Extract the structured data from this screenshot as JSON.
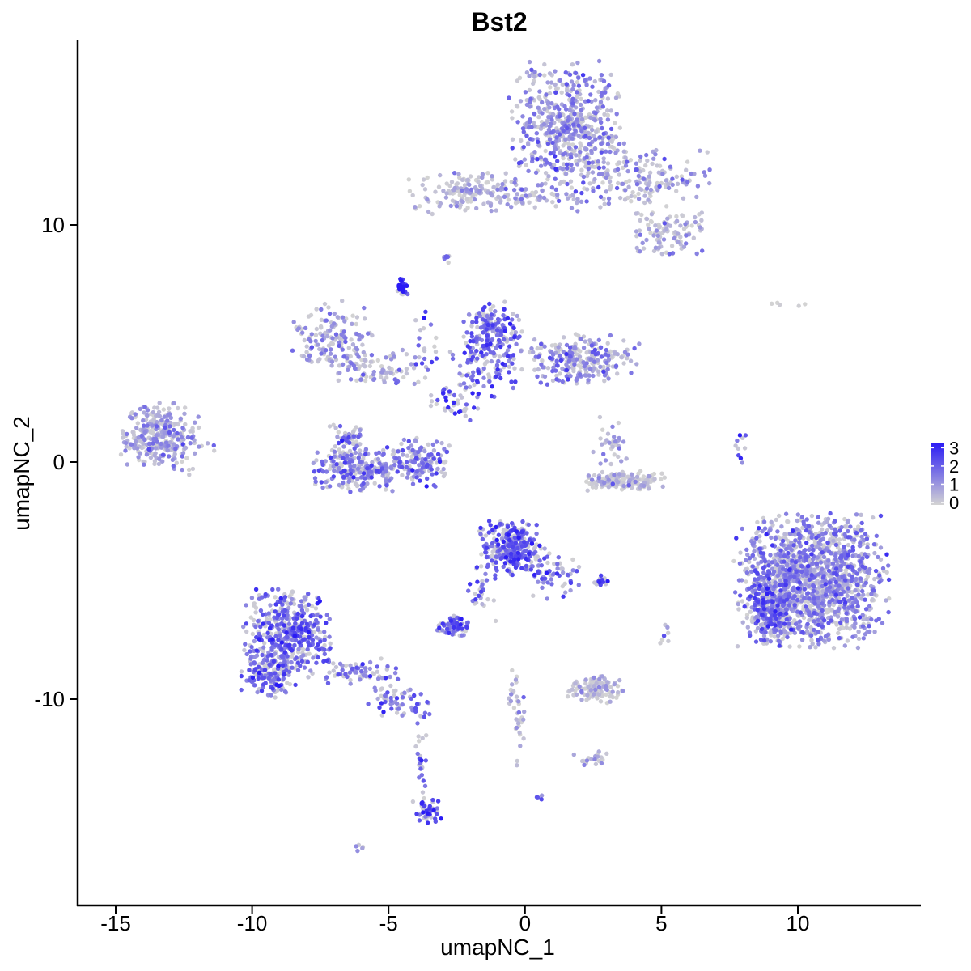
{
  "chart_data": {
    "type": "scatter",
    "title": "Bst2",
    "xlabel": "umapNC_1",
    "ylabel": "umapNC_2",
    "xlim": [
      -16.5,
      14.5
    ],
    "ylim": [
      -18.5,
      17.5
    ],
    "x_ticks": [
      -15,
      -10,
      -5,
      0,
      5,
      10
    ],
    "x_tick_labels": [
      "-15",
      "-10",
      "-5",
      "0",
      "5",
      "10"
    ],
    "y_ticks": [
      10,
      0,
      -10
    ],
    "y_tick_labels": [
      "10",
      "0",
      "-10"
    ],
    "grid": false,
    "legend": {
      "position": "right",
      "title": "",
      "labels": [
        "3",
        "2",
        "1",
        "0"
      ],
      "values": [
        3,
        2,
        1,
        0
      ],
      "low_color": "#D3D3D3",
      "high_color": "#2A1BF5"
    },
    "clusters": [
      {
        "cx": 1.5,
        "cy": 14.3,
        "sx": 1.0,
        "sy": 1.2,
        "n": 550,
        "expr": 1.1
      },
      {
        "cx": 4.0,
        "cy": 12.0,
        "sx": 1.3,
        "sy": 0.6,
        "n": 180,
        "expr": 0.8
      },
      {
        "cx": 5.3,
        "cy": 9.7,
        "sx": 0.6,
        "sy": 0.5,
        "n": 110,
        "expr": 0.7
      },
      {
        "cx": -2.0,
        "cy": 11.4,
        "sx": 1.1,
        "sy": 0.4,
        "n": 160,
        "expr": 0.5
      },
      {
        "cx": 0.4,
        "cy": 11.2,
        "sx": 0.9,
        "sy": 0.3,
        "n": 60,
        "expr": 0.9
      },
      {
        "cx": -4.5,
        "cy": 7.4,
        "sx": 0.12,
        "sy": 0.2,
        "n": 35,
        "expr": 3.0
      },
      {
        "cx": -2.9,
        "cy": 8.6,
        "sx": 0.1,
        "sy": 0.1,
        "n": 8,
        "expr": 1.5
      },
      {
        "cx": -7.0,
        "cy": 5.3,
        "sx": 0.7,
        "sy": 0.7,
        "n": 140,
        "expr": 1.0
      },
      {
        "cx": -5.3,
        "cy": 3.9,
        "sx": 0.9,
        "sy": 0.4,
        "n": 90,
        "expr": 0.8
      },
      {
        "cx": -1.2,
        "cy": 5.5,
        "sx": 0.5,
        "sy": 0.6,
        "n": 170,
        "expr": 1.7
      },
      {
        "cx": -1.5,
        "cy": 4.0,
        "sx": 0.6,
        "sy": 0.6,
        "n": 100,
        "expr": 1.8
      },
      {
        "cx": 2.0,
        "cy": 4.3,
        "sx": 1.0,
        "sy": 0.5,
        "n": 260,
        "expr": 1.1
      },
      {
        "cx": -2.5,
        "cy": 2.6,
        "sx": 0.4,
        "sy": 0.4,
        "n": 40,
        "expr": 2.4
      },
      {
        "cx": -3.7,
        "cy": 4.8,
        "sx": 0.3,
        "sy": 1.2,
        "n": 25,
        "expr": 2.3
      },
      {
        "cx": -13.4,
        "cy": 1.1,
        "sx": 0.65,
        "sy": 0.65,
        "n": 300,
        "expr": 0.9
      },
      {
        "cx": -12.0,
        "cy": 0.5,
        "sx": 0.4,
        "sy": 0.6,
        "n": 20,
        "expr": 0.5
      },
      {
        "cx": -6.0,
        "cy": -0.3,
        "sx": 0.8,
        "sy": 0.45,
        "n": 240,
        "expr": 1.5
      },
      {
        "cx": -3.8,
        "cy": 0.0,
        "sx": 0.5,
        "sy": 0.5,
        "n": 130,
        "expr": 1.5
      },
      {
        "cx": -6.5,
        "cy": 0.9,
        "sx": 0.35,
        "sy": 0.4,
        "n": 60,
        "expr": 1.4
      },
      {
        "cx": 3.6,
        "cy": -0.8,
        "sx": 0.7,
        "sy": 0.2,
        "n": 160,
        "expr": 0.3
      },
      {
        "cx": 3.1,
        "cy": 0.8,
        "sx": 0.3,
        "sy": 0.5,
        "n": 35,
        "expr": 0.6
      },
      {
        "cx": 10.5,
        "cy": -5.0,
        "sx": 1.3,
        "sy": 1.3,
        "n": 1500,
        "expr": 1.2
      },
      {
        "cx": 8.9,
        "cy": -6.2,
        "sx": 0.4,
        "sy": 0.7,
        "n": 180,
        "expr": 1.8
      },
      {
        "cx": -0.6,
        "cy": -3.6,
        "sx": 0.55,
        "sy": 0.55,
        "n": 300,
        "expr": 1.9
      },
      {
        "cx": 0.9,
        "cy": -4.7,
        "sx": 0.5,
        "sy": 0.5,
        "n": 60,
        "expr": 1.7
      },
      {
        "cx": -1.6,
        "cy": -5.5,
        "sx": 0.3,
        "sy": 0.6,
        "n": 25,
        "expr": 1.8
      },
      {
        "cx": -2.6,
        "cy": -6.9,
        "sx": 0.3,
        "sy": 0.2,
        "n": 70,
        "expr": 1.9
      },
      {
        "cx": -8.7,
        "cy": -7.2,
        "sx": 0.75,
        "sy": 0.9,
        "n": 420,
        "expr": 1.7
      },
      {
        "cx": -9.3,
        "cy": -8.9,
        "sx": 0.5,
        "sy": 0.5,
        "n": 170,
        "expr": 1.6
      },
      {
        "cx": -6.1,
        "cy": -8.9,
        "sx": 0.8,
        "sy": 0.3,
        "n": 70,
        "expr": 1.4
      },
      {
        "cx": -4.6,
        "cy": -10.1,
        "sx": 0.6,
        "sy": 0.3,
        "n": 60,
        "expr": 1.6
      },
      {
        "cx": -3.8,
        "cy": -12.7,
        "sx": 0.12,
        "sy": 1.0,
        "n": 25,
        "expr": 2.0
      },
      {
        "cx": -3.6,
        "cy": -14.7,
        "sx": 0.25,
        "sy": 0.25,
        "n": 45,
        "expr": 2.2
      },
      {
        "cx": 2.5,
        "cy": -9.6,
        "sx": 0.5,
        "sy": 0.3,
        "n": 110,
        "expr": 0.4
      },
      {
        "cx": 2.4,
        "cy": -12.5,
        "sx": 0.3,
        "sy": 0.15,
        "n": 20,
        "expr": 0.6
      },
      {
        "cx": -0.4,
        "cy": -10.0,
        "sx": 0.12,
        "sy": 0.6,
        "n": 18,
        "expr": 0.9
      },
      {
        "cx": -0.2,
        "cy": -11.3,
        "sx": 0.1,
        "sy": 0.7,
        "n": 20,
        "expr": 0.7
      },
      {
        "cx": 2.8,
        "cy": -5.0,
        "sx": 0.15,
        "sy": 0.1,
        "n": 15,
        "expr": 2.5
      },
      {
        "cx": 8.0,
        "cy": 0.4,
        "sx": 0.15,
        "sy": 0.4,
        "n": 10,
        "expr": 2.0
      },
      {
        "cx": 5.1,
        "cy": -7.3,
        "sx": 0.1,
        "sy": 0.3,
        "n": 8,
        "expr": 0.5
      },
      {
        "cx": 9.6,
        "cy": 6.7,
        "sx": 0.3,
        "sy": 0.1,
        "n": 5,
        "expr": 0.2
      },
      {
        "cx": 0.6,
        "cy": -14.1,
        "sx": 0.1,
        "sy": 0.1,
        "n": 6,
        "expr": 1.5
      },
      {
        "cx": -6.1,
        "cy": -16.3,
        "sx": 0.1,
        "sy": 0.1,
        "n": 5,
        "expr": 0.8
      }
    ]
  }
}
